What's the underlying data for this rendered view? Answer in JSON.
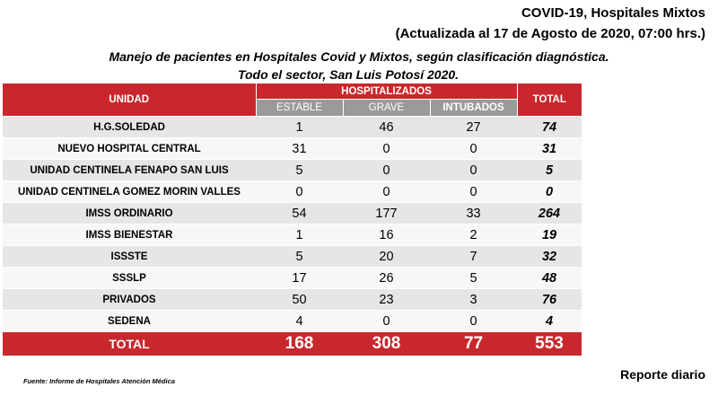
{
  "header": {
    "line1": "COVID-19, Hospitales Mixtos",
    "line2": "(Actualizada al 17 de Agosto de 2020, 07:00 hrs.)",
    "subtitle1": "Manejo de pacientes en Hospitales Covid y Mixtos, según clasificación diagnóstica.",
    "subtitle2": "Todo el sector, San Luis Potosí 2020."
  },
  "table": {
    "col_unit": "UNIDAD",
    "col_group": "HOSPITALIZADOS",
    "col_estable": "ESTABLE",
    "col_grave": "GRAVE",
    "col_intubados": "INTUBADOS",
    "col_total": "TOTAL",
    "rows": [
      {
        "unit": "H.G.SOLEDAD",
        "estable": "1",
        "grave": "46",
        "intubados": "27",
        "total": "74"
      },
      {
        "unit": "NUEVO HOSPITAL CENTRAL",
        "estable": "31",
        "grave": "0",
        "intubados": "0",
        "total": "31"
      },
      {
        "unit": "UNIDAD CENTINELA FENAPO SAN LUIS",
        "estable": "5",
        "grave": "0",
        "intubados": "0",
        "total": "5"
      },
      {
        "unit": "UNIDAD CENTINELA GOMEZ MORIN VALLES",
        "estable": "0",
        "grave": "0",
        "intubados": "0",
        "total": "0"
      },
      {
        "unit": "IMSS ORDINARIO",
        "estable": "54",
        "grave": "177",
        "intubados": "33",
        "total": "264"
      },
      {
        "unit": "IMSS BIENESTAR",
        "estable": "1",
        "grave": "16",
        "intubados": "2",
        "total": "19"
      },
      {
        "unit": "ISSSTE",
        "estable": "5",
        "grave": "20",
        "intubados": "7",
        "total": "32"
      },
      {
        "unit": "SSSLP",
        "estable": "17",
        "grave": "26",
        "intubados": "5",
        "total": "48"
      },
      {
        "unit": "PRIVADOS",
        "estable": "50",
        "grave": "23",
        "intubados": "3",
        "total": "76"
      },
      {
        "unit": "SEDENA",
        "estable": "4",
        "grave": "0",
        "intubados": "0",
        "total": "4"
      }
    ],
    "totals": {
      "label": "TOTAL",
      "estable": "168",
      "grave": "308",
      "intubados": "77",
      "total": "553"
    }
  },
  "footer": {
    "source": "Fuente: Informe de Hospitales Atención Médica",
    "report": "Reporte diario"
  },
  "colors": {
    "header_red": "#c8282d",
    "subheader_gray": "#9a9a9a"
  }
}
